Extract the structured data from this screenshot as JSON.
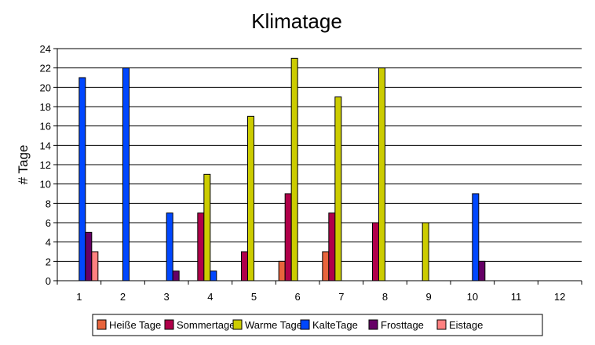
{
  "chart_data": {
    "type": "bar",
    "title": "Klimatage",
    "xlabel": "",
    "ylabel": "# Tage",
    "ylim": [
      0,
      24
    ],
    "yticks": [
      0,
      2,
      4,
      6,
      8,
      10,
      12,
      14,
      16,
      18,
      20,
      22,
      24
    ],
    "grid": true,
    "legend_position": "bottom",
    "categories": [
      "1",
      "2",
      "3",
      "4",
      "5",
      "6",
      "7",
      "8",
      "9",
      "10",
      "11",
      "12"
    ],
    "series": [
      {
        "name": "Heiße Tage",
        "color": "#E8643C",
        "values": [
          0,
          0,
          0,
          0,
          0,
          2,
          3,
          0,
          0,
          0,
          0,
          0
        ]
      },
      {
        "name": "Sommertage",
        "color": "#B0004A",
        "values": [
          0,
          0,
          0,
          7,
          3,
          9,
          7,
          6,
          0,
          0,
          0,
          0
        ]
      },
      {
        "name": "Warme Tage",
        "color": "#CCCC00",
        "values": [
          0,
          0,
          0,
          11,
          17,
          23,
          19,
          22,
          6,
          0,
          0,
          0
        ]
      },
      {
        "name": "KalteTage",
        "color": "#0047FF",
        "values": [
          21,
          22,
          7,
          1,
          0,
          0,
          0,
          0,
          0,
          9,
          0,
          0
        ]
      },
      {
        "name": "Frosttage",
        "color": "#660066",
        "values": [
          5,
          0,
          1,
          0,
          0,
          0,
          0,
          0,
          0,
          2,
          0,
          0
        ]
      },
      {
        "name": "Eistage",
        "color": "#FF8080",
        "values": [
          3,
          0,
          0,
          0,
          0,
          0,
          0,
          0,
          0,
          0,
          0,
          0
        ]
      }
    ]
  }
}
